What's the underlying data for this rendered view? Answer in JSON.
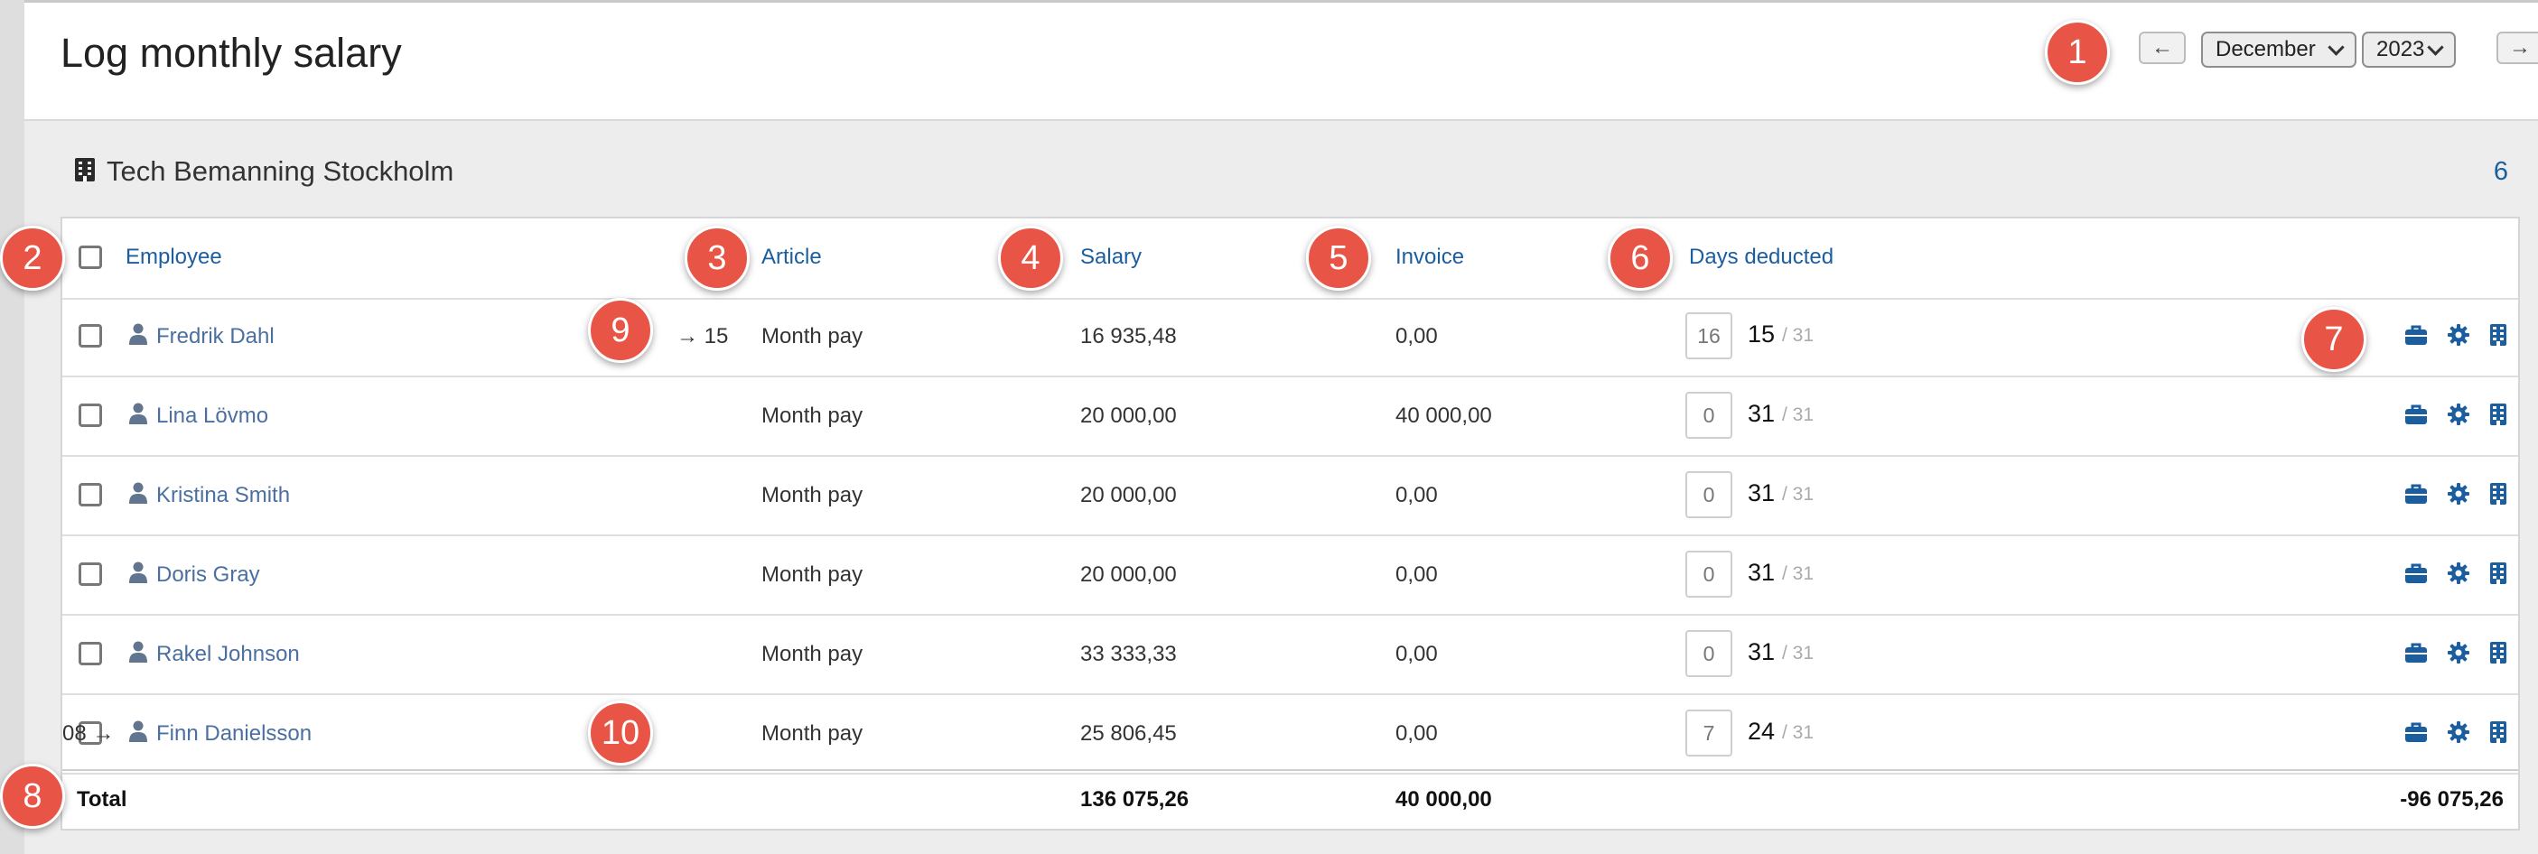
{
  "header": {
    "title": "Log monthly salary",
    "month": "December",
    "year": "2023",
    "prev_icon": "←",
    "next_icon": "→"
  },
  "group": {
    "name": "Tech Bemanning Stockholm",
    "count": "6",
    "icon": "building-icon"
  },
  "columns": {
    "employee": "Employee",
    "article": "Article",
    "salary": "Salary",
    "invoice": "Invoice",
    "days_deducted": "Days deducted"
  },
  "rows": [
    {
      "name": "Fredrik Dahl",
      "marker": "→ 15",
      "article": "Month pay",
      "salary": "16 935,48",
      "invoice": "0,00",
      "deducted": "16",
      "days": "15",
      "of": "/ 31"
    },
    {
      "name": "Lina Lövmo",
      "marker": "",
      "article": "Month pay",
      "salary": "20 000,00",
      "invoice": "40 000,00",
      "deducted": "0",
      "days": "31",
      "of": "/ 31"
    },
    {
      "name": "Kristina Smith",
      "marker": "",
      "article": "Month pay",
      "salary": "20 000,00",
      "invoice": "0,00",
      "deducted": "0",
      "days": "31",
      "of": "/ 31"
    },
    {
      "name": "Doris Gray",
      "marker": "",
      "article": "Month pay",
      "salary": "20 000,00",
      "invoice": "0,00",
      "deducted": "0",
      "days": "31",
      "of": "/ 31"
    },
    {
      "name": "Rakel Johnson",
      "marker": "",
      "article": "Month pay",
      "salary": "33 333,33",
      "invoice": "0,00",
      "deducted": "0",
      "days": "31",
      "of": "/ 31"
    },
    {
      "name": "Finn Danielsson",
      "marker": "08 →",
      "article": "Month pay",
      "salary": "25 806,45",
      "invoice": "0,00",
      "deducted": "7",
      "days": "24",
      "of": "/ 31"
    }
  ],
  "total": {
    "label": "Total",
    "salary": "136 075,26",
    "invoice": "40 000,00",
    "diff": "-96 075,26"
  },
  "action_icons": [
    "briefcase-icon",
    "gear-icon",
    "building-icon"
  ],
  "badges": [
    "1",
    "2",
    "3",
    "4",
    "5",
    "6",
    "7",
    "8",
    "9",
    "10"
  ],
  "colors": {
    "accent": "#1b5e9f",
    "badge": "#e85547",
    "link": "#4a6fa0"
  }
}
